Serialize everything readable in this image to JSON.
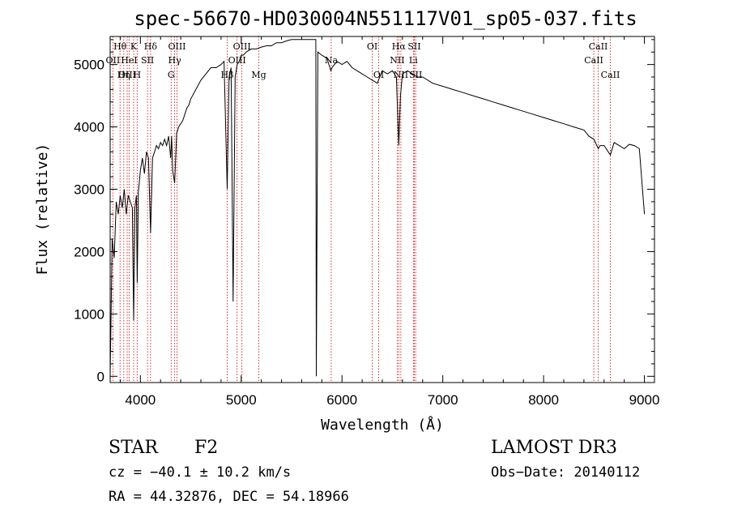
{
  "chart_data": {
    "type": "line",
    "title": "spec-56670-HD030004N551117V01_sp05-037.fits",
    "xlabel": "Wavelength (Å)",
    "ylabel": "Flux (relative)",
    "xlim": [
      3700,
      9100
    ],
    "ylim": [
      -100,
      5450
    ],
    "x_ticks": [
      4000,
      5000,
      6000,
      7000,
      8000,
      9000
    ],
    "y_ticks": [
      0,
      1000,
      2000,
      3000,
      4000,
      5000
    ],
    "series": [
      {
        "name": "flux",
        "x": [
          3700,
          3720,
          3740,
          3760,
          3780,
          3800,
          3820,
          3840,
          3860,
          3880,
          3900,
          3920,
          3933,
          3945,
          3960,
          3968,
          3980,
          4000,
          4020,
          4040,
          4060,
          4080,
          4101,
          4120,
          4140,
          4160,
          4180,
          4200,
          4220,
          4240,
          4260,
          4280,
          4300,
          4310,
          4320,
          4340,
          4360,
          4380,
          4400,
          4420,
          4440,
          4460,
          4480,
          4500,
          4550,
          4600,
          4650,
          4700,
          4750,
          4800,
          4830,
          4861,
          4880,
          4900,
          4920,
          4940,
          4960,
          4980,
          5000,
          5020,
          5050,
          5100,
          5150,
          5200,
          5250,
          5300,
          5350,
          5400,
          5450,
          5500,
          5550,
          5600,
          5650,
          5700,
          5740,
          5745,
          5760,
          5800,
          5850,
          5890,
          5900,
          5950,
          6000,
          6050,
          6100,
          6150,
          6200,
          6250,
          6300,
          6350,
          6400,
          6450,
          6500,
          6540,
          6563,
          6580,
          6600,
          6650,
          6700,
          6750,
          6800,
          6900,
          7000,
          7100,
          7200,
          7300,
          7400,
          7500,
          7600,
          7700,
          7800,
          7900,
          8000,
          8100,
          8200,
          8300,
          8400,
          8450,
          8500,
          8542,
          8560,
          8600,
          8662,
          8700,
          8750,
          8800,
          8850,
          8900,
          8950,
          9000
        ],
        "values": [
          0,
          2200,
          1900,
          2800,
          2600,
          2900,
          2700,
          3000,
          2600,
          2900,
          2800,
          2700,
          900,
          2700,
          2900,
          1500,
          2950,
          3300,
          3500,
          3250,
          3600,
          3500,
          2300,
          3500,
          3600,
          3700,
          3650,
          3750,
          3700,
          3800,
          3700,
          3850,
          3500,
          3850,
          3300,
          3100,
          3900,
          4000,
          4050,
          4100,
          4200,
          4300,
          4350,
          4450,
          4600,
          4750,
          4850,
          4950,
          4950,
          5000,
          5050,
          3000,
          4800,
          4950,
          1200,
          4800,
          5000,
          5050,
          5150,
          5150,
          5200,
          5250,
          5250,
          5280,
          5300,
          5300,
          5350,
          5350,
          5380,
          5400,
          5400,
          5400,
          5400,
          5400,
          5400,
          0,
          5200,
          5150,
          5100,
          4900,
          4950,
          5050,
          5000,
          5050,
          4950,
          4900,
          4850,
          4800,
          4750,
          4700,
          4900,
          4850,
          4900,
          4800,
          3700,
          4500,
          4850,
          4900,
          4850,
          4800,
          4800,
          4700,
          4650,
          4600,
          4550,
          4500,
          4450,
          4400,
          4350,
          4300,
          4250,
          4200,
          4150,
          4100,
          4050,
          4000,
          3950,
          3850,
          3800,
          3650,
          3700,
          3700,
          3550,
          3750,
          3700,
          3650,
          3720,
          3700,
          3650,
          2600
        ]
      }
    ],
    "line_labels": [
      {
        "name": "Hθ",
        "wavelength": 3798,
        "row": 1
      },
      {
        "name": "OII",
        "wavelength": 3727,
        "row": 2
      },
      {
        "name": "OIII",
        "wavelength": 3869,
        "row": 3
      },
      {
        "name": "Hη",
        "wavelength": 3835,
        "row": 3
      },
      {
        "name": "K",
        "wavelength": 3933,
        "row": 1
      },
      {
        "name": "HeI",
        "wavelength": 3889,
        "row": 2
      },
      {
        "name": "H",
        "wavelength": 3968,
        "row": 3
      },
      {
        "name": "SII",
        "wavelength": 4071,
        "row": 2
      },
      {
        "name": "Hδ",
        "wavelength": 4101,
        "row": 1
      },
      {
        "name": "OIII",
        "wavelength": 4363,
        "row": 1
      },
      {
        "name": "Hγ",
        "wavelength": 4340,
        "row": 2
      },
      {
        "name": "G",
        "wavelength": 4305,
        "row": 3
      },
      {
        "name": "OIII",
        "wavelength": 5007,
        "row": 1
      },
      {
        "name": "OIII",
        "wavelength": 4959,
        "row": 2
      },
      {
        "name": "Hβ",
        "wavelength": 4861,
        "row": 3
      },
      {
        "name": "Mg",
        "wavelength": 5175,
        "row": 3
      },
      {
        "name": "Na",
        "wavelength": 5893,
        "row": 2
      },
      {
        "name": "OI",
        "wavelength": 6300,
        "row": 1
      },
      {
        "name": "OI",
        "wavelength": 6364,
        "row": 3
      },
      {
        "name": "Hα",
        "wavelength": 6563,
        "row": 1
      },
      {
        "name": "SII",
        "wavelength": 6717,
        "row": 1
      },
      {
        "name": "NII",
        "wavelength": 6548,
        "row": 2
      },
      {
        "name": "NII",
        "wavelength": 6584,
        "row": 3
      },
      {
        "name": "Li",
        "wavelength": 6708,
        "row": 2
      },
      {
        "name": "SII",
        "wavelength": 6731,
        "row": 3
      },
      {
        "name": "CaII",
        "wavelength": 8542,
        "row": 1
      },
      {
        "name": "CaII",
        "wavelength": 8498,
        "row": 2
      },
      {
        "name": "CaII",
        "wavelength": 8662,
        "row": 3
      }
    ],
    "line_color": "#000000",
    "marker_color": "#cc0000"
  },
  "footer": {
    "object_class": "STAR",
    "subclass": "F2",
    "survey": "LAMOST DR3",
    "cz": "cz = −40.1 ± 10.2 km/s",
    "obs_date": "Obs−Date: 20140112",
    "coords": "RA =  44.32876, DEC =  54.18966"
  }
}
